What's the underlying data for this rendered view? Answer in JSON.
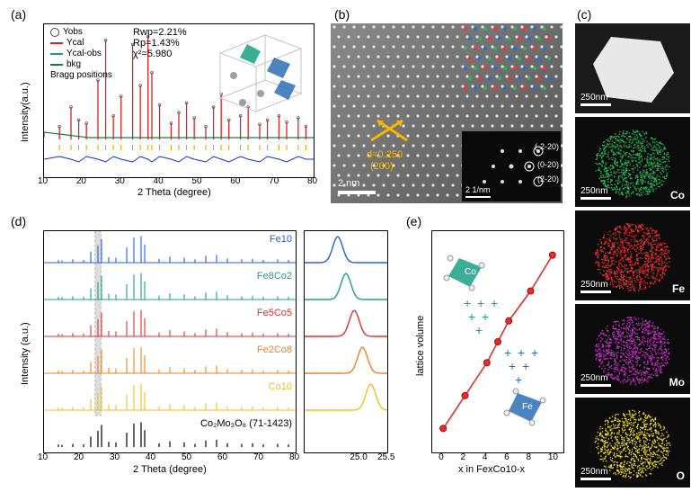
{
  "panel_labels": {
    "a": "(a)",
    "b": "(b)",
    "c": "(c)",
    "d": "(d)",
    "e": "(e)"
  },
  "panel_a": {
    "type": "line",
    "xlabel": "2 Theta (degree)",
    "ylabel": "Intensity(a.u.)",
    "xlim": [
      10,
      80
    ],
    "xtick_step": 10,
    "fit_stats": {
      "Rwp": "Rwp=2.21%",
      "Rp": "Rp=1.43%",
      "chi2": "χ²=5.980"
    },
    "legend": [
      {
        "label": "Yobs",
        "kind": "marker",
        "color": "#444444"
      },
      {
        "label": "Ycal",
        "kind": "line",
        "color": "#e02020"
      },
      {
        "label": "Ycal-obs",
        "kind": "line",
        "color": "#1aa084"
      },
      {
        "label": "bkg",
        "kind": "line",
        "color": "#1a7a3a"
      },
      {
        "label": "Bragg positions",
        "kind": "tick",
        "color": "#e0a000"
      }
    ],
    "peaks_x": [
      14,
      17,
      19,
      21,
      24,
      26,
      28,
      30,
      33,
      35,
      37,
      38,
      40,
      43,
      45,
      47,
      49,
      52,
      54,
      56,
      58,
      61,
      63,
      66,
      68,
      71,
      73,
      76,
      78
    ],
    "peak_heights": [
      0.12,
      0.3,
      0.18,
      0.15,
      0.55,
      0.92,
      0.22,
      0.4,
      0.88,
      0.5,
      0.95,
      0.62,
      0.32,
      0.15,
      0.25,
      0.34,
      0.2,
      0.12,
      0.3,
      0.42,
      0.18,
      0.22,
      0.3,
      0.14,
      0.18,
      0.22,
      0.16,
      0.2,
      0.12
    ],
    "diff_color": "#1030d0",
    "bragg_tick_color": "#e0a000",
    "background_color": "#ffffff",
    "label_fontsize": 11,
    "unit_cell_colors": {
      "tetra1": "#1aa084",
      "tetra2": "#2b6fb3",
      "atom": "#9aa0a6",
      "bond": "#bfc4c9"
    }
  },
  "panel_b": {
    "type": "micrograph",
    "d_spacing": "d=0.250",
    "plane": "(200)",
    "scalebar": "2 nm",
    "inset_scalebar": "2 1/nm",
    "fft_spots": [
      "(-2-20)",
      "(0-20)",
      "(2-20)"
    ],
    "bg_color": "#707070",
    "dot_color": "#f0f0f0",
    "overlay_colors": {
      "plane_arrow": "#f5b800",
      "atoms1": "#ff3030",
      "atoms2": "#2070e0",
      "atoms3": "#20c060"
    },
    "inset_bg": "#0a0a0a"
  },
  "panel_c": {
    "type": "eds-map",
    "scalebar": "250nm",
    "maps": [
      {
        "label": "",
        "color": "#e8e8e8",
        "bg": "#1a1a1a"
      },
      {
        "label": "Co",
        "color": "#20c060",
        "bg": "#0c0c0c"
      },
      {
        "label": "Fe",
        "color": "#ff3030",
        "bg": "#0c0c0c"
      },
      {
        "label": "Mo",
        "color": "#d030d0",
        "bg": "#0c0c0c"
      },
      {
        "label": "O",
        "color": "#f5e020",
        "bg": "#0c0c0c"
      }
    ]
  },
  "panel_d": {
    "type": "stacked-line",
    "xlabel": "2 Theta (degree)",
    "ylabel": "Intensity (a.u.)",
    "xlim": [
      10,
      80
    ],
    "xtick_step": 10,
    "zoom_xlim": [
      24.0,
      25.5
    ],
    "zoom_ticks": [
      25.0,
      25.5
    ],
    "highlight_band": [
      24.2,
      25.8
    ],
    "highlight_color": "#c8c8c8",
    "series": [
      {
        "label": "Fe10",
        "color": "#2060e0",
        "zoom_center": 24.6
      },
      {
        "label": "Fe8Co2",
        "color": "#1aa084",
        "zoom_center": 24.75
      },
      {
        "label": "Fe5Co5",
        "color": "#e03030",
        "zoom_center": 24.9
      },
      {
        "label": "Fe2Co8",
        "color": "#f08020",
        "zoom_center": 25.05
      },
      {
        "label": "Co10",
        "color": "#f0c020",
        "zoom_center": 25.2
      }
    ],
    "reference": {
      "label": "Co₂Mo₃O₈ (71-1423)",
      "color": "#000000"
    },
    "peaks_x": [
      14,
      15,
      18,
      21,
      23,
      25,
      26,
      28,
      30,
      33,
      35,
      37,
      38,
      42,
      45,
      49,
      52,
      55,
      58,
      61,
      65,
      68,
      71,
      75,
      78
    ],
    "peak_heights": [
      0.1,
      0.08,
      0.12,
      0.1,
      0.4,
      0.62,
      0.85,
      0.2,
      0.18,
      0.55,
      0.9,
      0.95,
      0.65,
      0.14,
      0.22,
      0.18,
      0.12,
      0.25,
      0.28,
      0.15,
      0.12,
      0.14,
      0.1,
      0.12,
      0.1
    ],
    "label_fontsize": 11
  },
  "panel_e": {
    "type": "scatter-line",
    "xlabel": "x in FexCo10-x",
    "ylabel": "lattice volume",
    "xlim": [
      -1,
      11
    ],
    "xtick_step": 2,
    "points_x": [
      0,
      2,
      4,
      5,
      6,
      8,
      10
    ],
    "points_y": [
      0,
      1.1,
      2.2,
      2.9,
      3.6,
      4.6,
      5.8
    ],
    "line_color": "#e03030",
    "marker_color": "#e03030",
    "marker_size": 7,
    "tetra_top_color": "#1aa084",
    "tetra_top_label": "Co",
    "tetra_bot_color": "#2b6fb3",
    "tetra_bot_label": "Fe",
    "cross_color_top": "#1aa084",
    "cross_color_bot": "#2b6fb3",
    "label_fontsize": 11
  }
}
